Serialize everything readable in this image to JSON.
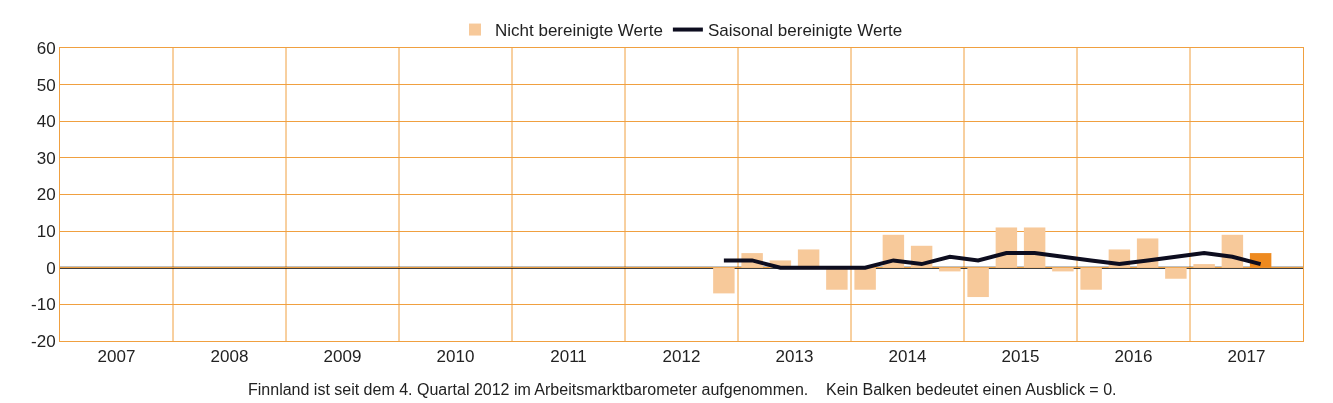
{
  "chart_data": {
    "type": "bar",
    "x": [
      2012.875,
      2013.125,
      2013.375,
      2013.625,
      2013.875,
      2014.125,
      2014.375,
      2014.625,
      2014.875,
      2015.125,
      2015.375,
      2015.625,
      2015.875,
      2016.125,
      2016.375,
      2016.625,
      2016.875,
      2017.125,
      2017.375,
      2017.625
    ],
    "series": [
      {
        "name": "Nicht bereinigte Werte",
        "color": "#f7c99a",
        "colors": [
          "#f7c99a",
          "#f7c99a",
          "#f7c99a",
          "#f7c99a",
          "#f7c99a",
          "#f7c99a",
          "#f7c99a",
          "#f7c99a",
          "#f7c99a",
          "#f7c99a",
          "#f7c99a",
          "#f7c99a",
          "#f7c99a",
          "#f7c99a",
          "#f7c99a",
          "#f7c99a",
          "#f7c99a",
          "#f7c99a",
          "#f7c99a",
          "#ee8a1f"
        ],
        "values": [
          -7,
          4,
          2,
          5,
          -6,
          -6,
          9,
          6,
          -1,
          -8,
          11,
          11,
          -1,
          -6,
          5,
          8,
          -3,
          1,
          9,
          4
        ]
      },
      {
        "name": "Saisonal bereinigte Werte",
        "type": "line",
        "color": "#0d0d1f",
        "values": [
          2,
          2,
          0,
          0,
          0,
          0,
          2,
          1,
          3,
          2,
          4,
          4,
          3,
          2,
          1,
          2,
          3,
          4,
          3,
          1
        ]
      }
    ],
    "xlim": [
      2007,
      2018
    ],
    "xticks": [
      {
        "value": 2007.5,
        "label": "2007"
      },
      {
        "value": 2008,
        "label": null
      },
      {
        "value": 2008.5,
        "label": "2008"
      },
      {
        "value": 2009,
        "label": null
      },
      {
        "value": 2009.5,
        "label": "2009"
      },
      {
        "value": 2010,
        "label": null
      },
      {
        "value": 2010.5,
        "label": "2010"
      },
      {
        "value": 2011,
        "label": null
      },
      {
        "value": 2011.5,
        "label": "2011"
      },
      {
        "value": 2012,
        "label": null
      },
      {
        "value": 2012.5,
        "label": "2012"
      },
      {
        "value": 2013,
        "label": null
      },
      {
        "value": 2013.5,
        "label": "2013"
      },
      {
        "value": 2014,
        "label": null
      },
      {
        "value": 2014.5,
        "label": "2014"
      },
      {
        "value": 2015,
        "label": null
      },
      {
        "value": 2015.5,
        "label": "2015"
      },
      {
        "value": 2016,
        "label": null
      },
      {
        "value": 2016.5,
        "label": "2016"
      },
      {
        "value": 2017,
        "label": null
      },
      {
        "value": 2017.5,
        "label": "2017"
      }
    ],
    "ylim": [
      -20,
      60
    ],
    "yticks": [
      -20,
      -10,
      0,
      10,
      20,
      30,
      40,
      50,
      60
    ],
    "grid": true,
    "ref_lines": [
      {
        "axis": "y",
        "value": 0,
        "color": "#000000"
      }
    ],
    "legend": "top",
    "annotations": [
      "Finnland ist seit dem 4. Quartal 2012 im Arbeitsmarktbarometer aufgenommen.    Kein Balken bedeutet einen Ausblick = 0."
    ]
  }
}
